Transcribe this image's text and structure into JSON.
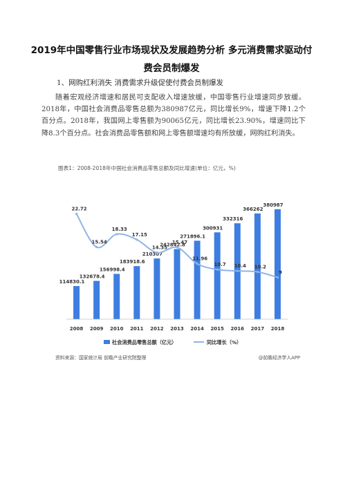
{
  "document": {
    "title": "2019年中国零售行业市场现状及发展趋势分析 多元消费需求驱动付费会员制爆发",
    "section_heading": "1、网购红利消失 消费需求升级促使付费会员制爆发",
    "paragraph": "随着宏观经济增速和居民可支配收入增速放缓，中国零售行业增速同步放缓。2018年，中国社会消费品零售总额为380987亿元，同比增长9%，增速下降1.2个百分点。2018年，我国网上零售额为90065亿元，同比增长23.90%，增速同比下降8.3个百分点。社会消费品零售额和网上零售额增速均有所放缓，网购红利消失。",
    "figure_caption": "图表1：2008-2018年中国社会消费品零售总额及同比增速(单位：亿元，%)",
    "source": "资料来源：国家统计局 前瞻产业研究院整理",
    "app_credit": "@前瞻经济学人APP"
  },
  "colors": {
    "bar": "#3d7ee0",
    "line": "#8fb4e6",
    "text": "#333333"
  },
  "chart_data": {
    "type": "bar",
    "categories": [
      "2008",
      "2009",
      "2010",
      "2011",
      "2012",
      "2013",
      "2014",
      "2015",
      "2016",
      "2017",
      "2018"
    ],
    "series": [
      {
        "name": "社会消费品零售总额（亿元）",
        "type": "bar",
        "values": [
          114830.1,
          132678.4,
          156998.4,
          183918.6,
          210307,
          242842.8,
          271896.1,
          300931,
          332316,
          366262,
          380987
        ],
        "labels": [
          "114830.1",
          "132678.4",
          "156998.4",
          "183918.6",
          "210307",
          "242842.8",
          "271896.1",
          "300931",
          "332316",
          "366262",
          "380987"
        ]
      },
      {
        "name": "同比增长（%）",
        "type": "line",
        "values": [
          22.72,
          15.54,
          18.33,
          17.15,
          14.35,
          15.47,
          11.96,
          10.7,
          10.4,
          10.2,
          9
        ],
        "labels": [
          "22.72",
          "15.54",
          "18.33",
          "17.15",
          "14.35",
          "15.47",
          "11.96",
          "10.7",
          "10.4",
          "10.2",
          "9"
        ]
      }
    ],
    "ylim_bar": [
      0,
      450000
    ],
    "ylim_line": [
      0,
      28
    ],
    "grid": false,
    "legend": "bottom"
  }
}
